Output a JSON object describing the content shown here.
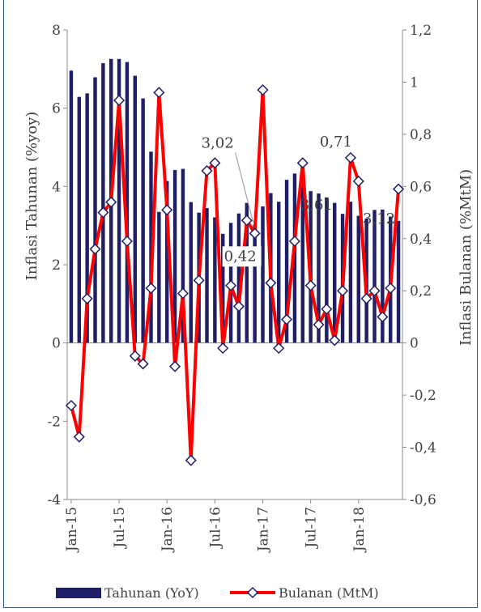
{
  "chart_data": {
    "type": "bar+line",
    "title": "",
    "x_ticks": [
      "Jan-15",
      "Jul-15",
      "Jan-16",
      "Jul-16",
      "Jan-17",
      "Jul-17",
      "Jan-18"
    ],
    "y_left": {
      "label": "Inflasi Tahunan (%yoy)",
      "lim": [
        -4,
        8
      ],
      "ticks": [
        "-4",
        "-2",
        "0",
        "2",
        "4",
        "6",
        "8"
      ]
    },
    "y_right": {
      "label": "Inflasi Bulanan (%MtM)",
      "lim": [
        -0.6,
        1.2
      ],
      "ticks": [
        "-0,6",
        "-0,4",
        "-0,2",
        "0",
        "0,2",
        "0,4",
        "0,6",
        "0,8",
        "1",
        "1,2"
      ]
    },
    "series": [
      {
        "name": "Tahunan (YoY)",
        "type": "bar",
        "axis": "left",
        "color": "#1f1f66",
        "values": [
          6.96,
          6.29,
          6.38,
          6.79,
          7.15,
          7.26,
          7.26,
          7.18,
          6.83,
          6.25,
          4.89,
          3.35,
          4.14,
          4.42,
          4.45,
          3.6,
          3.33,
          3.45,
          3.21,
          2.79,
          3.07,
          3.31,
          3.58,
          3.02,
          3.49,
          3.83,
          3.61,
          4.17,
          4.33,
          4.37,
          3.88,
          3.82,
          3.72,
          3.58,
          3.3,
          3.61,
          3.25,
          3.18,
          3.4,
          3.41,
          3.23,
          3.12
        ]
      },
      {
        "name": "Bulanan (MtM)",
        "type": "line",
        "axis": "right",
        "color": "#ff0000",
        "values": [
          -0.24,
          -0.36,
          0.17,
          0.36,
          0.5,
          0.54,
          0.93,
          0.39,
          -0.05,
          -0.08,
          0.21,
          0.96,
          0.51,
          -0.09,
          0.19,
          -0.45,
          0.24,
          0.66,
          0.69,
          -0.02,
          0.22,
          0.14,
          0.47,
          0.42,
          0.97,
          0.23,
          -0.02,
          0.09,
          0.39,
          0.69,
          0.22,
          0.07,
          0.13,
          0.01,
          0.2,
          0.71,
          0.62,
          0.17,
          0.2,
          0.1,
          0.21,
          0.59
        ]
      }
    ],
    "annotations": [
      {
        "text": "3,02",
        "series": "Tahunan (YoY)",
        "index": 23
      },
      {
        "text": "0,42",
        "series": "Bulanan (MtM)",
        "index": 23
      },
      {
        "text": "0,71",
        "series": "Bulanan (MtM)",
        "index": 35
      },
      {
        "text": "3,61",
        "series": "Tahunan (YoY)",
        "index": 35
      },
      {
        "text": "3,12",
        "series": "Tahunan (YoY)",
        "index": 41
      }
    ],
    "legend": {
      "placement": "bottom"
    }
  }
}
